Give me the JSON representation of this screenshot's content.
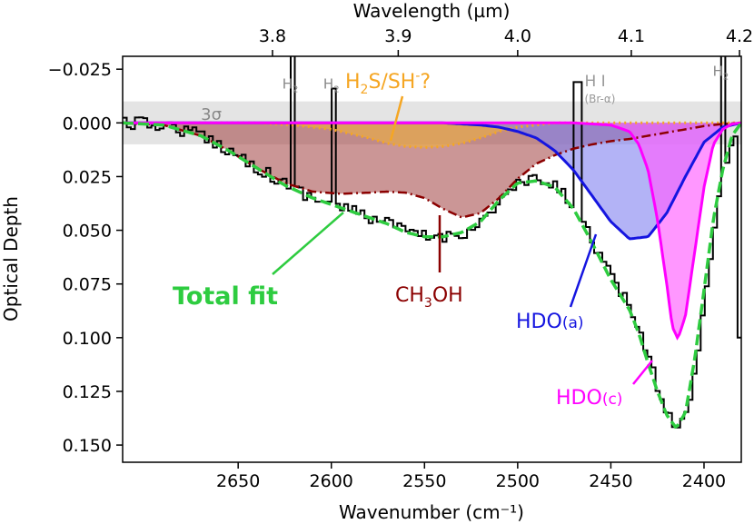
{
  "chart_data": {
    "type": "line",
    "title": "",
    "xlabel": "Wavenumber (cm⁻¹)",
    "ylabel": "Optical Depth",
    "top_xlabel": "Wavelength (µm)",
    "xlim": [
      2712,
      2380
    ],
    "ylim": [
      0.158,
      -0.031
    ],
    "bottom_ticks": [
      2650,
      2600,
      2550,
      2500,
      2450,
      2400
    ],
    "bottom_tick_labels": [
      "2650",
      "2600",
      "2550",
      "2500",
      "2450",
      "2400"
    ],
    "top_ticks": [
      3.8,
      3.9,
      4.0,
      4.1,
      4.2
    ],
    "top_tick_labels": [
      "3.8",
      "3.9",
      "4.0",
      "4.1",
      "4.2"
    ],
    "y_ticks": [
      -0.025,
      0.0,
      0.025,
      0.05,
      0.075,
      0.1,
      0.125,
      0.15
    ],
    "y_tick_labels": [
      "−0.025",
      "0.000",
      "0.025",
      "0.050",
      "0.075",
      "0.100",
      "0.125",
      "0.150"
    ],
    "noise_band": {
      "label": "3σ",
      "ymin": -0.01,
      "ymax": 0.01
    },
    "components": [
      {
        "name": "CH₃OH",
        "label_main": "CH",
        "label_sub": "3",
        "label_tail": "OH",
        "color": "#8b0000",
        "fill": "#a04040",
        "style": "dashdot",
        "x": [
          2712,
          2690,
          2670,
          2655,
          2640,
          2625,
          2610,
          2595,
          2580,
          2570,
          2560,
          2550,
          2540,
          2530,
          2520,
          2510,
          2500,
          2490,
          2480,
          2470,
          2460,
          2450,
          2440,
          2430,
          2420,
          2410,
          2400,
          2390,
          2380
        ],
        "y": [
          0.0,
          0.001,
          0.006,
          0.013,
          0.021,
          0.028,
          0.032,
          0.033,
          0.0325,
          0.032,
          0.0325,
          0.035,
          0.04,
          0.044,
          0.042,
          0.035,
          0.026,
          0.019,
          0.015,
          0.012,
          0.01,
          0.0085,
          0.0075,
          0.006,
          0.0045,
          0.003,
          0.0015,
          0.0005,
          0.0
        ]
      },
      {
        "name": "H₂S/SH⁻?",
        "label_main": "H",
        "label_sub": "2",
        "label_tail": "S/SH",
        "label_sup": "-",
        "label_end": "?",
        "color": "#f5a623",
        "fill": "#f0b040",
        "style": "dotted",
        "x": [
          2712,
          2640,
          2620,
          2600,
          2590,
          2580,
          2570,
          2560,
          2550,
          2540,
          2530,
          2520,
          2510,
          2500,
          2480,
          2380
        ],
        "y": [
          0.0,
          0.0,
          0.001,
          0.003,
          0.005,
          0.007,
          0.0095,
          0.011,
          0.0115,
          0.011,
          0.0095,
          0.007,
          0.004,
          0.002,
          0.0,
          0.0
        ]
      },
      {
        "name": "HDO(a)",
        "label_main": "HDO",
        "label_small": "(a)",
        "color": "#1515e0",
        "fill": "#8080f0",
        "style": "solid",
        "x": [
          2712,
          2540,
          2520,
          2510,
          2500,
          2490,
          2480,
          2470,
          2460,
          2450,
          2440,
          2430,
          2420,
          2410,
          2400,
          2390,
          2380
        ],
        "y": [
          0.0,
          0.0,
          0.001,
          0.002,
          0.004,
          0.007,
          0.013,
          0.022,
          0.034,
          0.046,
          0.054,
          0.053,
          0.042,
          0.025,
          0.009,
          0.002,
          0.0
        ]
      },
      {
        "name": "HDO(c)",
        "label_main": "HDO",
        "label_small": "(c)",
        "color": "#ff00ff",
        "fill": "#ff60ff",
        "style": "solid",
        "x": [
          2712,
          2470,
          2450,
          2440,
          2435,
          2430,
          2425,
          2420,
          2417,
          2414,
          2410,
          2405,
          2400,
          2395,
          2390,
          2385,
          2380
        ],
        "y": [
          0.0,
          0.0,
          0.001,
          0.004,
          0.01,
          0.022,
          0.045,
          0.075,
          0.095,
          0.1005,
          0.09,
          0.06,
          0.03,
          0.01,
          0.003,
          0.0005,
          0.0
        ]
      },
      {
        "name": "Total fit",
        "color": "#2ecc40",
        "style": "dashed",
        "x": [
          2712,
          2690,
          2670,
          2655,
          2640,
          2625,
          2610,
          2600,
          2590,
          2580,
          2570,
          2560,
          2550,
          2540,
          2530,
          2520,
          2510,
          2500,
          2490,
          2480,
          2470,
          2460,
          2450,
          2440,
          2435,
          2430,
          2425,
          2420,
          2415,
          2410,
          2405,
          2400,
          2395,
          2390,
          2385,
          2380
        ],
        "y": [
          0.0,
          0.001,
          0.006,
          0.013,
          0.021,
          0.029,
          0.035,
          0.038,
          0.041,
          0.044,
          0.047,
          0.051,
          0.053,
          0.053,
          0.051,
          0.046,
          0.036,
          0.028,
          0.027,
          0.03,
          0.04,
          0.056,
          0.073,
          0.087,
          0.098,
          0.112,
          0.125,
          0.136,
          0.142,
          0.135,
          0.11,
          0.078,
          0.045,
          0.022,
          0.006,
          0.0
        ]
      }
    ],
    "annotations": [
      {
        "name": "H₂",
        "main": "H",
        "sub": "2",
        "x": 2622,
        "ypos": -0.016
      },
      {
        "name": "H₂",
        "main": "H",
        "sub": "2",
        "x": 2600,
        "ypos": -0.016
      },
      {
        "name": "H₂",
        "main": "H",
        "sub": "2",
        "x": 2391,
        "ypos": -0.022
      },
      {
        "name": "H I",
        "main": "H I",
        "sub": "(Br-α)",
        "x": 2469,
        "ypos": -0.017
      }
    ],
    "legend_labels": {
      "total_fit": "Total fit"
    }
  }
}
